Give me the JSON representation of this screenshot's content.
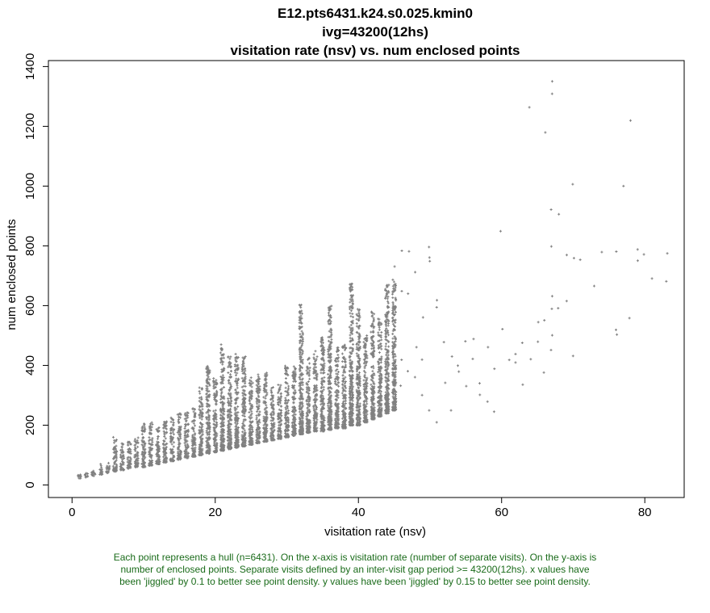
{
  "chart_data": {
    "type": "scatter",
    "title_lines": [
      "E12.pts6431.k24.s0.025.kmin0",
      "ivg=43200(12hs)",
      "visitation rate (nsv) vs. num enclosed points"
    ],
    "xlabel": "visitation rate (nsv)",
    "ylabel": "num enclosed points",
    "xlim": [
      -3.3,
      85.5
    ],
    "ylim": [
      -42,
      1420
    ],
    "x_ticks": [
      0,
      20,
      40,
      60,
      80
    ],
    "y_ticks": [
      0,
      200,
      400,
      600,
      800,
      1000,
      1200,
      1400
    ],
    "point_color": "#808080",
    "x_jiggle": 0.1,
    "y_jiggle": 0.15,
    "note": "Dense region: each integer x value from 1 to about 45 holds many points spread between a low and high y value; listed points below are sparser upper-range observations.",
    "columns": [
      {
        "x": 1,
        "y_min": 22,
        "y_max": 38
      },
      {
        "x": 2,
        "y_min": 25,
        "y_max": 40
      },
      {
        "x": 3,
        "y_min": 30,
        "y_max": 55
      },
      {
        "x": 4,
        "y_min": 35,
        "y_max": 70
      },
      {
        "x": 5,
        "y_min": 40,
        "y_max": 75
      },
      {
        "x": 6,
        "y_min": 45,
        "y_max": 165
      },
      {
        "x": 7,
        "y_min": 50,
        "y_max": 140
      },
      {
        "x": 8,
        "y_min": 55,
        "y_max": 150
      },
      {
        "x": 9,
        "y_min": 60,
        "y_max": 160
      },
      {
        "x": 10,
        "y_min": 60,
        "y_max": 210
      },
      {
        "x": 11,
        "y_min": 65,
        "y_max": 210
      },
      {
        "x": 12,
        "y_min": 70,
        "y_max": 200
      },
      {
        "x": 13,
        "y_min": 75,
        "y_max": 220
      },
      {
        "x": 14,
        "y_min": 80,
        "y_max": 225
      },
      {
        "x": 15,
        "y_min": 85,
        "y_max": 240
      },
      {
        "x": 16,
        "y_min": 90,
        "y_max": 250
      },
      {
        "x": 17,
        "y_min": 95,
        "y_max": 260
      },
      {
        "x": 18,
        "y_min": 100,
        "y_max": 330
      },
      {
        "x": 19,
        "y_min": 105,
        "y_max": 400
      },
      {
        "x": 20,
        "y_min": 110,
        "y_max": 360
      },
      {
        "x": 21,
        "y_min": 115,
        "y_max": 470
      },
      {
        "x": 22,
        "y_min": 120,
        "y_max": 430
      },
      {
        "x": 23,
        "y_min": 125,
        "y_max": 440
      },
      {
        "x": 24,
        "y_min": 130,
        "y_max": 430
      },
      {
        "x": 25,
        "y_min": 135,
        "y_max": 360
      },
      {
        "x": 26,
        "y_min": 140,
        "y_max": 370
      },
      {
        "x": 27,
        "y_min": 145,
        "y_max": 380
      },
      {
        "x": 28,
        "y_min": 150,
        "y_max": 330
      },
      {
        "x": 29,
        "y_min": 155,
        "y_max": 340
      },
      {
        "x": 30,
        "y_min": 160,
        "y_max": 400
      },
      {
        "x": 31,
        "y_min": 165,
        "y_max": 400
      },
      {
        "x": 32,
        "y_min": 170,
        "y_max": 610
      },
      {
        "x": 33,
        "y_min": 175,
        "y_max": 430
      },
      {
        "x": 34,
        "y_min": 180,
        "y_max": 450
      },
      {
        "x": 35,
        "y_min": 180,
        "y_max": 500
      },
      {
        "x": 36,
        "y_min": 185,
        "y_max": 600
      },
      {
        "x": 37,
        "y_min": 190,
        "y_max": 460
      },
      {
        "x": 38,
        "y_min": 190,
        "y_max": 470
      },
      {
        "x": 39,
        "y_min": 200,
        "y_max": 680
      },
      {
        "x": 40,
        "y_min": 200,
        "y_max": 590
      },
      {
        "x": 41,
        "y_min": 210,
        "y_max": 500
      },
      {
        "x": 42,
        "y_min": 220,
        "y_max": 580
      },
      {
        "x": 43,
        "y_min": 230,
        "y_max": 560
      },
      {
        "x": 44,
        "y_min": 240,
        "y_max": 670
      },
      {
        "x": 45,
        "y_min": 250,
        "y_max": 690
      }
    ],
    "points": [
      [
        46,
        785
      ],
      [
        47,
        640
      ],
      [
        47,
        780
      ],
      [
        48,
        710
      ],
      [
        49,
        560
      ],
      [
        50,
        795
      ],
      [
        50,
        750
      ],
      [
        50,
        760
      ],
      [
        51,
        620
      ],
      [
        51,
        595
      ],
      [
        46,
        420
      ],
      [
        47,
        380
      ],
      [
        48,
        460
      ],
      [
        49,
        300
      ],
      [
        50,
        250
      ],
      [
        51,
        210
      ],
      [
        52,
        480
      ],
      [
        52,
        340
      ],
      [
        53,
        430
      ],
      [
        54,
        400
      ],
      [
        55,
        480
      ],
      [
        56,
        420
      ],
      [
        56,
        490
      ],
      [
        57,
        340
      ],
      [
        57,
        300
      ],
      [
        58,
        460
      ],
      [
        58,
        280
      ],
      [
        59,
        245
      ],
      [
        60,
        520
      ],
      [
        60,
        850
      ],
      [
        61,
        420
      ],
      [
        62,
        440
      ],
      [
        63,
        475
      ],
      [
        63,
        335
      ],
      [
        64,
        1265
      ],
      [
        64,
        420
      ],
      [
        65,
        545
      ],
      [
        66,
        1180
      ],
      [
        66,
        375
      ],
      [
        67,
        1350
      ],
      [
        67,
        1310
      ],
      [
        67,
        920
      ],
      [
        67,
        800
      ],
      [
        67,
        630
      ],
      [
        67,
        590
      ],
      [
        67,
        500
      ],
      [
        67,
        450
      ],
      [
        68,
        905
      ],
      [
        68,
        590
      ],
      [
        69,
        770
      ],
      [
        69,
        615
      ],
      [
        70,
        760
      ],
      [
        70,
        1005
      ],
      [
        70,
        430
      ],
      [
        71,
        755
      ],
      [
        73,
        665
      ],
      [
        74,
        780
      ],
      [
        76,
        780
      ],
      [
        76,
        520
      ],
      [
        76,
        505
      ],
      [
        77,
        1000
      ],
      [
        78,
        1220
      ],
      [
        78,
        560
      ],
      [
        79,
        790
      ],
      [
        79,
        750
      ],
      [
        80,
        770
      ],
      [
        81,
        690
      ],
      [
        83,
        775
      ],
      [
        83,
        680
      ],
      [
        41,
        420
      ],
      [
        42,
        480
      ],
      [
        43,
        350
      ],
      [
        44,
        600
      ],
      [
        45,
        550
      ],
      [
        46,
        650
      ],
      [
        45,
        730
      ],
      [
        46,
        330
      ],
      [
        48,
        360
      ],
      [
        49,
        420
      ],
      [
        53,
        250
      ],
      [
        54,
        380
      ],
      [
        55,
        330
      ],
      [
        59,
        390
      ],
      [
        62,
        410
      ],
      [
        65,
        480
      ],
      [
        66,
        550
      ]
    ]
  },
  "caption": "Each point represents a hull (n=6431). On the x-axis is visitation rate (number of separate visits). On the y-axis is number of enclosed points. Separate visits defined by an inter-visit gap period >= 43200(12hs). x values have been 'jiggled' by 0.1 to better see point density. y values have been 'jiggled' by 0.15 to better see point density."
}
